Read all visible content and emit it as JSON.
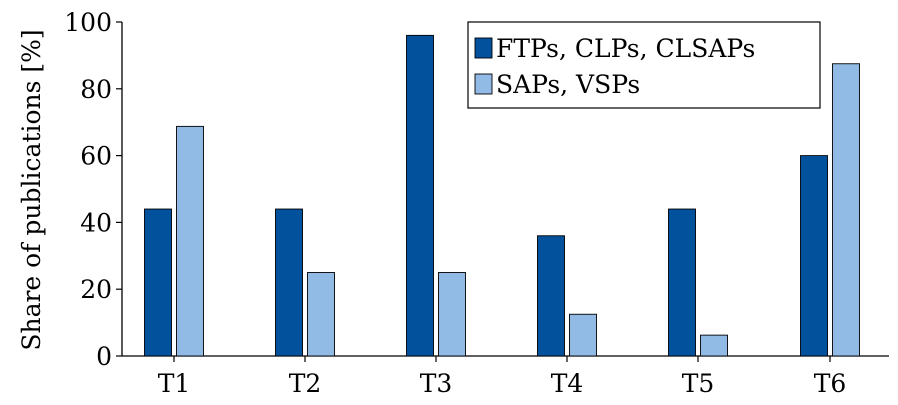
{
  "chart_data": {
    "type": "bar",
    "title": "",
    "xlabel": "",
    "ylabel": "Share of publications [%]",
    "categories": [
      "T1",
      "T2",
      "T3",
      "T4",
      "T5",
      "T6"
    ],
    "ylim": [
      0,
      100
    ],
    "yticks": [
      0,
      20,
      40,
      60,
      80,
      100
    ],
    "grid": false,
    "legend_position": "top-right",
    "series": [
      {
        "name": "FTPs, CLPs, CLSAPs",
        "color": "#02519c",
        "values": [
          44,
          44,
          96,
          36,
          44,
          60
        ]
      },
      {
        "name": "SAPs, VSPs",
        "color": "#91bbe5",
        "values": [
          68.75,
          25,
          25,
          12.5,
          6.25,
          87.5
        ]
      }
    ]
  }
}
